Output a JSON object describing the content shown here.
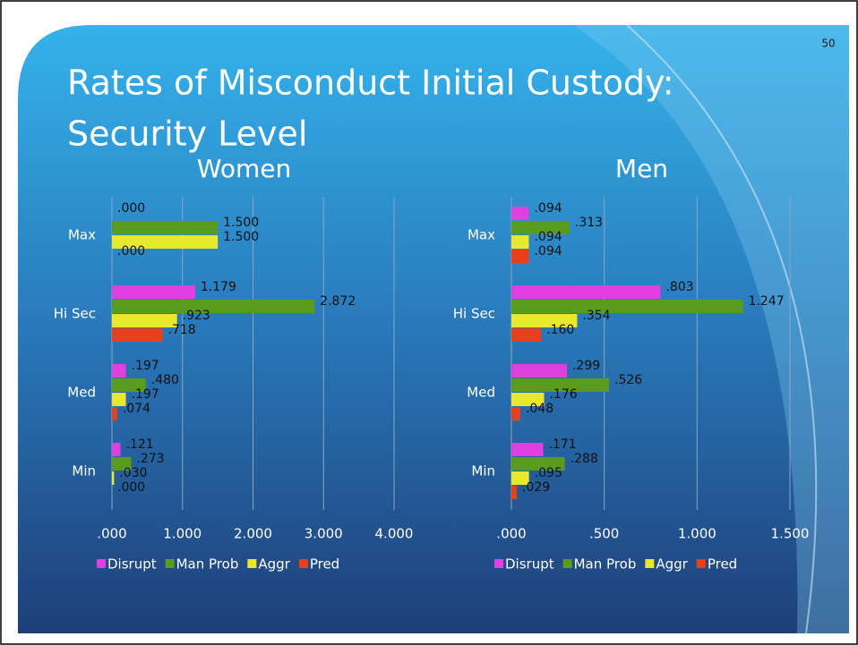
{
  "title": [
    "Rates of Misconduct Initial Custody:",
    "Security Level"
  ],
  "slide_number": "50",
  "chart_data": [
    {
      "type": "bar",
      "orientation": "horizontal",
      "title": "Women",
      "categories": [
        "Max",
        "Hi Sec",
        "Med",
        "Min"
      ],
      "series": [
        {
          "name": "Disrupt",
          "color": "#e040e0",
          "values": [
            0,
            1.179,
            0.197,
            0.121
          ],
          "value_labels": [
            ".000",
            "1.179",
            ".197",
            ".121"
          ]
        },
        {
          "name": "Man Prob",
          "color": "#5a9a1c",
          "values": [
            1.5,
            2.872,
            0.48,
            0.273
          ],
          "value_labels": [
            "1.500",
            "2.872",
            ".480",
            ".273"
          ]
        },
        {
          "name": "Aggr",
          "color": "#e8e82c",
          "values": [
            1.5,
            0.923,
            0.197,
            0.03
          ],
          "value_labels": [
            "1.500",
            ".923",
            ".197",
            ".030"
          ]
        },
        {
          "name": "Pred",
          "color": "#e8401a",
          "values": [
            0,
            0.718,
            0.074,
            0
          ],
          "value_labels": [
            ".000",
            ".718",
            ".074",
            ".000"
          ]
        }
      ],
      "xlim": [
        0,
        4
      ],
      "xticks": [
        {
          "value": 0,
          "label": ".000"
        },
        {
          "value": 1,
          "label": "1.000"
        },
        {
          "value": 2,
          "label": "2.000"
        },
        {
          "value": 3,
          "label": "3.000"
        },
        {
          "value": 4,
          "label": "4.000"
        }
      ],
      "grid": true,
      "legend": "bottom"
    },
    {
      "type": "bar",
      "orientation": "horizontal",
      "title": "Men",
      "categories": [
        "Max",
        "Hi Sec",
        "Med",
        "Min"
      ],
      "series": [
        {
          "name": "Disrupt",
          "color": "#e040e0",
          "values": [
            0.094,
            0.803,
            0.299,
            0.171
          ],
          "value_labels": [
            ".094",
            ".803",
            ".299",
            ".171"
          ]
        },
        {
          "name": "Man Prob",
          "color": "#5a9a1c",
          "values": [
            0.313,
            1.247,
            0.526,
            0.288
          ],
          "value_labels": [
            ".313",
            "1.247",
            ".526",
            ".288"
          ]
        },
        {
          "name": "Aggr",
          "color": "#e8e82c",
          "values": [
            0.094,
            0.354,
            0.176,
            0.095
          ],
          "value_labels": [
            ".094",
            ".354",
            ".176",
            ".095"
          ]
        },
        {
          "name": "Pred",
          "color": "#e8401a",
          "values": [
            0.094,
            0.16,
            0.048,
            0.029
          ],
          "value_labels": [
            ".094",
            ".160",
            ".048",
            ".029"
          ]
        }
      ],
      "xlim": [
        0,
        1.5
      ],
      "xticks": [
        {
          "value": 0,
          "label": ".000"
        },
        {
          "value": 0.5,
          "label": ".500"
        },
        {
          "value": 1,
          "label": "1.000"
        },
        {
          "value": 1.5,
          "label": "1.500"
        }
      ],
      "grid": true,
      "legend": "bottom"
    }
  ]
}
